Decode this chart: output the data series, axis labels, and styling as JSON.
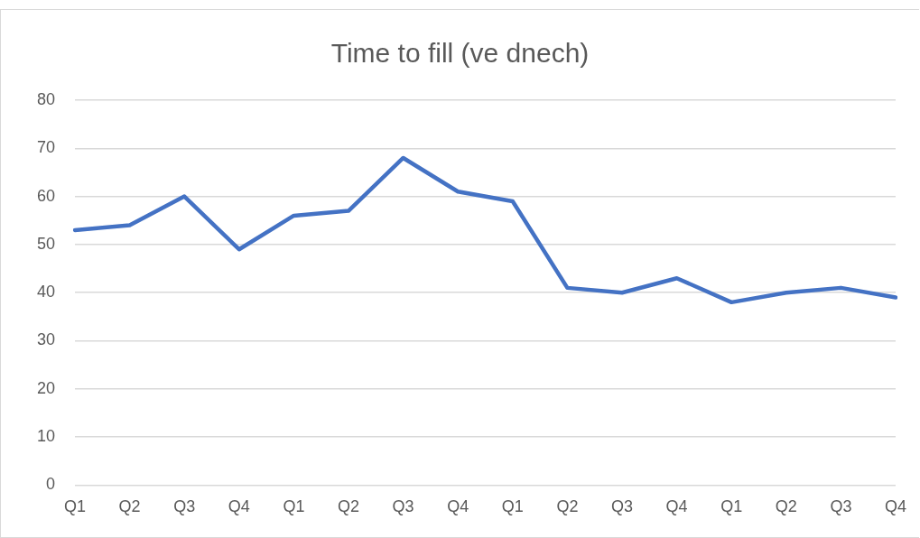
{
  "chart_data": {
    "type": "line",
    "title": "Time to fill (ve dnech)",
    "categories": [
      "Q1",
      "Q2",
      "Q3",
      "Q4",
      "Q1",
      "Q2",
      "Q3",
      "Q4",
      "Q1",
      "Q2",
      "Q3",
      "Q4",
      "Q1",
      "Q2",
      "Q3",
      "Q4"
    ],
    "series": [
      {
        "color": "#4472c4",
        "values": [
          53,
          54,
          60,
          49,
          56,
          57,
          68,
          61,
          59,
          41,
          40,
          43,
          38,
          40,
          41,
          39
        ]
      }
    ],
    "ylim": [
      0,
      80
    ],
    "yticks": [
      0,
      10,
      20,
      30,
      40,
      50,
      60,
      70,
      80
    ],
    "grid": "y",
    "legend": false,
    "marker": "none",
    "line_style": "solid"
  }
}
